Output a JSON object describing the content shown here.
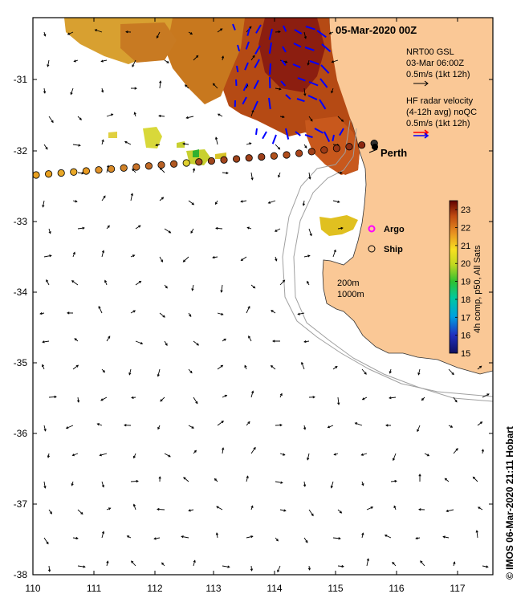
{
  "title": "05-Mar-2020 00Z",
  "legend": {
    "gsl_line1": "NRT00 GSL",
    "gsl_line2": "03-Mar 06:00Z",
    "gsl_line3": "0.5m/s (1kt 12h)",
    "hf_line1": "HF radar velocity",
    "hf_line2": "(4-12h avg) noQC",
    "hf_line3": "0.5m/s (1kt 12h)"
  },
  "places": {
    "perth": "Perth"
  },
  "markers": {
    "argo": "Argo",
    "ship": "Ship"
  },
  "isobaths": {
    "iso200": "200m",
    "iso1000": "1000m"
  },
  "colorbar": {
    "label": "4h comp, p50, All Sats",
    "min": 15,
    "max": 23.5,
    "ticks": [
      "15",
      "16",
      "17",
      "18",
      "19",
      "20",
      "21",
      "22",
      "23"
    ]
  },
  "axes": {
    "lon_labels": [
      "110",
      "111",
      "112",
      "113",
      "114",
      "115",
      "116",
      "117"
    ],
    "lat_labels": [
      "-31",
      "-32",
      "-33",
      "-34",
      "-35",
      "-36",
      "-37",
      "-38"
    ]
  },
  "credit": "© IMOS 06-Mar-2020 21:11 Hobart",
  "colors": {
    "land": "#fac896",
    "hf_red": "#ff0000",
    "hf_blue": "#0000ff",
    "argo": "#ff00ff"
  }
}
